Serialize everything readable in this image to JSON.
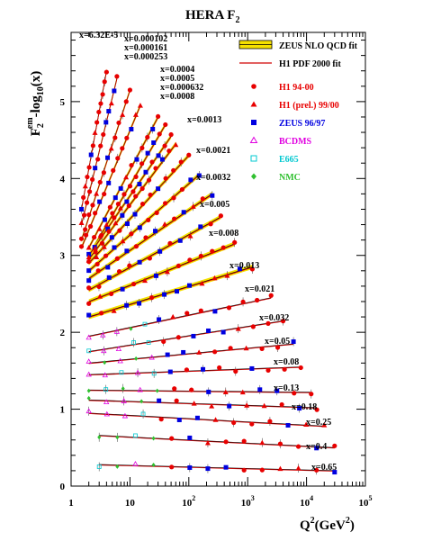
{
  "chart_data": {
    "type": "scatter",
    "title": "HERA F",
    "title_sub": "2",
    "ylabel_main": "F",
    "ylabel_sub": "2",
    "ylabel_sup": "em",
    "ylabel_rest": "-log",
    "ylabel_sub2": "10",
    "ylabel_end": "(x)",
    "xlabel": "Q",
    "xlabel_sup": "2",
    "xlabel_rest": "(GeV",
    "xlabel_sup2": "2",
    "xlabel_end": ")",
    "xscale": "log",
    "xlim": [
      1,
      100000
    ],
    "ylim": [
      0,
      5.9
    ],
    "yticks": [
      "0",
      "1",
      "2",
      "3",
      "4",
      "5"
    ],
    "xticks": [
      {
        "base": "1",
        "exp": ""
      },
      {
        "base": "10",
        "exp": ""
      },
      {
        "base": "10",
        "exp": "2"
      },
      {
        "base": "10",
        "exp": "3"
      },
      {
        "base": "10",
        "exp": "4"
      },
      {
        "base": "10",
        "exp": "5"
      }
    ],
    "legend_position": "top-right",
    "legend": [
      {
        "label": "ZEUS NLO QCD fit",
        "marker": "band",
        "color": "#f5e000"
      },
      {
        "label": "H1 PDF 2000 fit",
        "marker": "line",
        "color": "#d00000"
      },
      {
        "label": "H1 94-00",
        "marker": "circle",
        "color": "#e80000"
      },
      {
        "label": "H1 (prel.) 99/00",
        "marker": "triangle",
        "color": "#e80000"
      },
      {
        "label": "ZEUS 96/97",
        "marker": "square",
        "color": "#0000e0"
      },
      {
        "label": "BCDMS",
        "marker": "open-triangle",
        "color": "#e000e0"
      },
      {
        "label": "E665",
        "marker": "open-square",
        "color": "#00c8d0"
      },
      {
        "label": "NMC",
        "marker": "diamond",
        "color": "#30c030"
      }
    ],
    "bins": [
      {
        "label": "x=6.32E-5",
        "q2min": 1.5,
        "q2max": 4,
        "y0": 3.6,
        "y1": 5.4
      },
      {
        "label": "x=0.000102",
        "q2min": 1.5,
        "q2max": 6,
        "y0": 3.4,
        "y1": 5.3
      },
      {
        "label": "x=0.000161",
        "q2min": 1.5,
        "q2max": 10,
        "y0": 3.2,
        "y1": 5.15
      },
      {
        "label": "x=0.000253",
        "q2min": 1.5,
        "q2max": 15,
        "y0": 3.1,
        "y1": 4.95
      },
      {
        "label": "x=0.0004",
        "q2min": 2,
        "q2max": 30,
        "y0": 3.1,
        "y1": 4.8
      },
      {
        "label": "x=0.0005",
        "q2min": 2,
        "q2max": 40,
        "y0": 3.0,
        "y1": 4.7
      },
      {
        "label": "x=0.000632",
        "q2min": 2,
        "q2max": 50,
        "y0": 3.0,
        "y1": 4.55
      },
      {
        "label": "x=0.0008",
        "q2min": 2,
        "q2max": 60,
        "y0": 2.95,
        "y1": 4.45
      },
      {
        "label": "x=0.0013",
        "q2min": 2,
        "q2max": 100,
        "y0": 2.9,
        "y1": 4.3
      },
      {
        "label": "x=0.0021",
        "q2min": 2,
        "q2max": 150,
        "y0": 2.8,
        "y1": 4.05
      },
      {
        "label": "x=0.0032",
        "q2min": 2,
        "q2max": 250,
        "y0": 2.7,
        "y1": 3.8
      },
      {
        "label": "x=0.005",
        "q2min": 2,
        "q2max": 350,
        "y0": 2.55,
        "y1": 3.5
      },
      {
        "label": "x=0.008",
        "q2min": 2,
        "q2max": 600,
        "y0": 2.4,
        "y1": 3.15
      },
      {
        "label": "x=0.013",
        "q2min": 2,
        "q2max": 1200,
        "y0": 2.2,
        "y1": 2.85
      },
      {
        "label": "x=0.021",
        "q2min": 2,
        "q2max": 2500,
        "y0": 1.95,
        "y1": 2.45
      },
      {
        "label": "x=0.032",
        "q2min": 2,
        "q2max": 4000,
        "y0": 1.75,
        "y1": 2.15
      },
      {
        "label": "x=0.05",
        "q2min": 2,
        "q2max": 6000,
        "y0": 1.6,
        "y1": 1.85
      },
      {
        "label": "x=0.08",
        "q2min": 2,
        "q2max": 8000,
        "y0": 1.45,
        "y1": 1.55
      },
      {
        "label": "x=0.13",
        "q2min": 2,
        "q2max": 12000,
        "y0": 1.25,
        "y1": 1.22
      },
      {
        "label": "x=0.18",
        "q2min": 2,
        "q2max": 15000,
        "y0": 1.12,
        "y1": 1.02
      },
      {
        "label": "x=0.25",
        "q2min": 2,
        "q2max": 20000,
        "y0": 0.95,
        "y1": 0.78
      },
      {
        "label": "x=0.4",
        "q2min": 3,
        "q2max": 30000,
        "y0": 0.66,
        "y1": 0.5
      },
      {
        "label": "x=0.65",
        "q2min": 3,
        "q2max": 30000,
        "y0": 0.28,
        "y1": 0.2
      }
    ]
  }
}
